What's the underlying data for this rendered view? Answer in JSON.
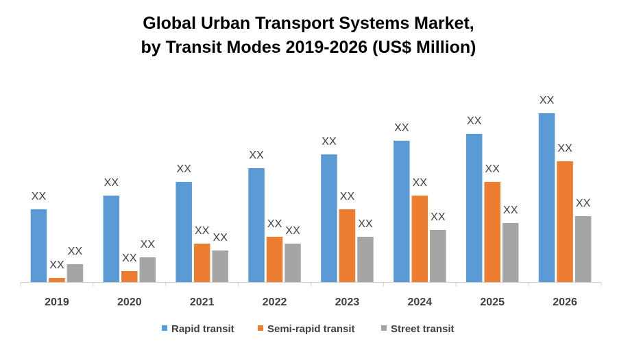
{
  "chart_data": {
    "type": "bar",
    "title_line1": "Global Urban Transport Systems Market,",
    "title_line2": "by Transit Modes 2019-2026 (US$ Million)",
    "xlabel": "",
    "ylabel": "",
    "grid": false,
    "legend_position": "bottom",
    "categories": [
      "2019",
      "2020",
      "2021",
      "2022",
      "2023",
      "2024",
      "2025",
      "2026"
    ],
    "series": [
      {
        "name": "Rapid transit",
        "color": "#5B9BD5",
        "values": [
          10.6,
          12.6,
          14.6,
          16.6,
          18.6,
          20.6,
          21.6,
          24.6
        ],
        "labels": [
          "XX",
          "XX",
          "XX",
          "XX",
          "XX",
          "XX",
          "XX",
          "XX"
        ]
      },
      {
        "name": "Semi-rapid transit",
        "color": "#ED7D31",
        "values": [
          0.6,
          1.6,
          5.6,
          6.6,
          10.6,
          12.6,
          14.6,
          17.6
        ],
        "labels": [
          "XX",
          "XX",
          "XX",
          "XX",
          "XX",
          "XX",
          "XX",
          "XX"
        ]
      },
      {
        "name": "Street transit",
        "color": "#A5A5A5",
        "values": [
          2.6,
          3.6,
          4.6,
          5.6,
          6.6,
          7.6,
          8.6,
          9.6
        ],
        "labels": [
          "XX",
          "XX",
          "XX",
          "XX",
          "XX",
          "XX",
          "XX",
          "XX"
        ]
      }
    ],
    "note": "values are relative estimates; no value axis is printed"
  }
}
